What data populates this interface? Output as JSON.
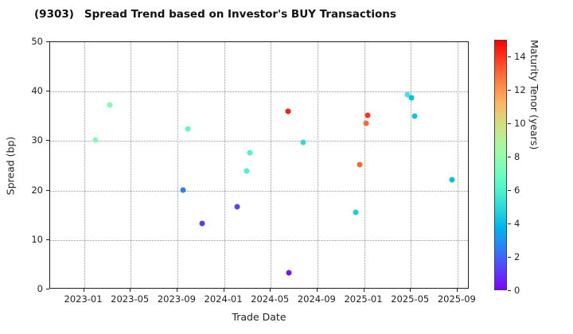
{
  "title_code": "(9303)",
  "title_text": "Spread Trend based on Investor's BUY Transactions",
  "chart_data": {
    "type": "scatter",
    "title": "(9303)  Spread Trend based on Investor's BUY Transactions",
    "xlabel": "Trade Date",
    "ylabel": "Spread (bp)",
    "ylim": [
      0,
      50
    ],
    "y_ticks": [
      0,
      10,
      20,
      30,
      40,
      50
    ],
    "x_ticks": [
      "2023-01",
      "2023-05",
      "2023-09",
      "2024-01",
      "2024-05",
      "2024-09",
      "2025-01",
      "2025-05",
      "2025-09"
    ],
    "x_domain": [
      "2022-10-04",
      "2025-10-02"
    ],
    "grid": true,
    "legend_position": "none",
    "colorbar": {
      "label": "Maturity Tenor (years)",
      "min": 0,
      "max": 15,
      "ticks": [
        0,
        2,
        4,
        6,
        8,
        10,
        12,
        14
      ],
      "colormap": "rainbow",
      "color_low": "#8000ff",
      "color_mid": "#80ffb5",
      "color_high": "#ff0000"
    },
    "points": [
      {
        "date": "2023-02-01",
        "spread": 30.2,
        "maturity": 7.5
      },
      {
        "date": "2023-03-08",
        "spread": 37.3,
        "maturity": 7.5
      },
      {
        "date": "2023-09-16",
        "spread": 20.1,
        "maturity": 2.5
      },
      {
        "date": "2023-09-28",
        "spread": 32.4,
        "maturity": 6.5
      },
      {
        "date": "2023-11-04",
        "spread": 13.3,
        "maturity": 1.0
      },
      {
        "date": "2024-02-04",
        "spread": 16.7,
        "maturity": 1.2
      },
      {
        "date": "2024-02-29",
        "spread": 23.9,
        "maturity": 6.0
      },
      {
        "date": "2024-03-08",
        "spread": 27.6,
        "maturity": 6.0
      },
      {
        "date": "2024-06-16",
        "spread": 36.0,
        "maturity": 14.5
      },
      {
        "date": "2024-06-18",
        "spread": 3.4,
        "maturity": 0.4
      },
      {
        "date": "2024-07-24",
        "spread": 29.8,
        "maturity": 5.0
      },
      {
        "date": "2024-12-10",
        "spread": 15.6,
        "maturity": 4.5
      },
      {
        "date": "2024-12-20",
        "spread": 25.2,
        "maturity": 13.0
      },
      {
        "date": "2025-01-07",
        "spread": 33.6,
        "maturity": 13.0
      },
      {
        "date": "2025-01-10",
        "spread": 35.2,
        "maturity": 14.0
      },
      {
        "date": "2025-04-22",
        "spread": 39.4,
        "maturity": 5.5
      },
      {
        "date": "2025-05-02",
        "spread": 38.7,
        "maturity": 4.0
      },
      {
        "date": "2025-05-12",
        "spread": 35.1,
        "maturity": 4.2
      },
      {
        "date": "2025-08-17",
        "spread": 22.2,
        "maturity": 4.0
      }
    ]
  }
}
